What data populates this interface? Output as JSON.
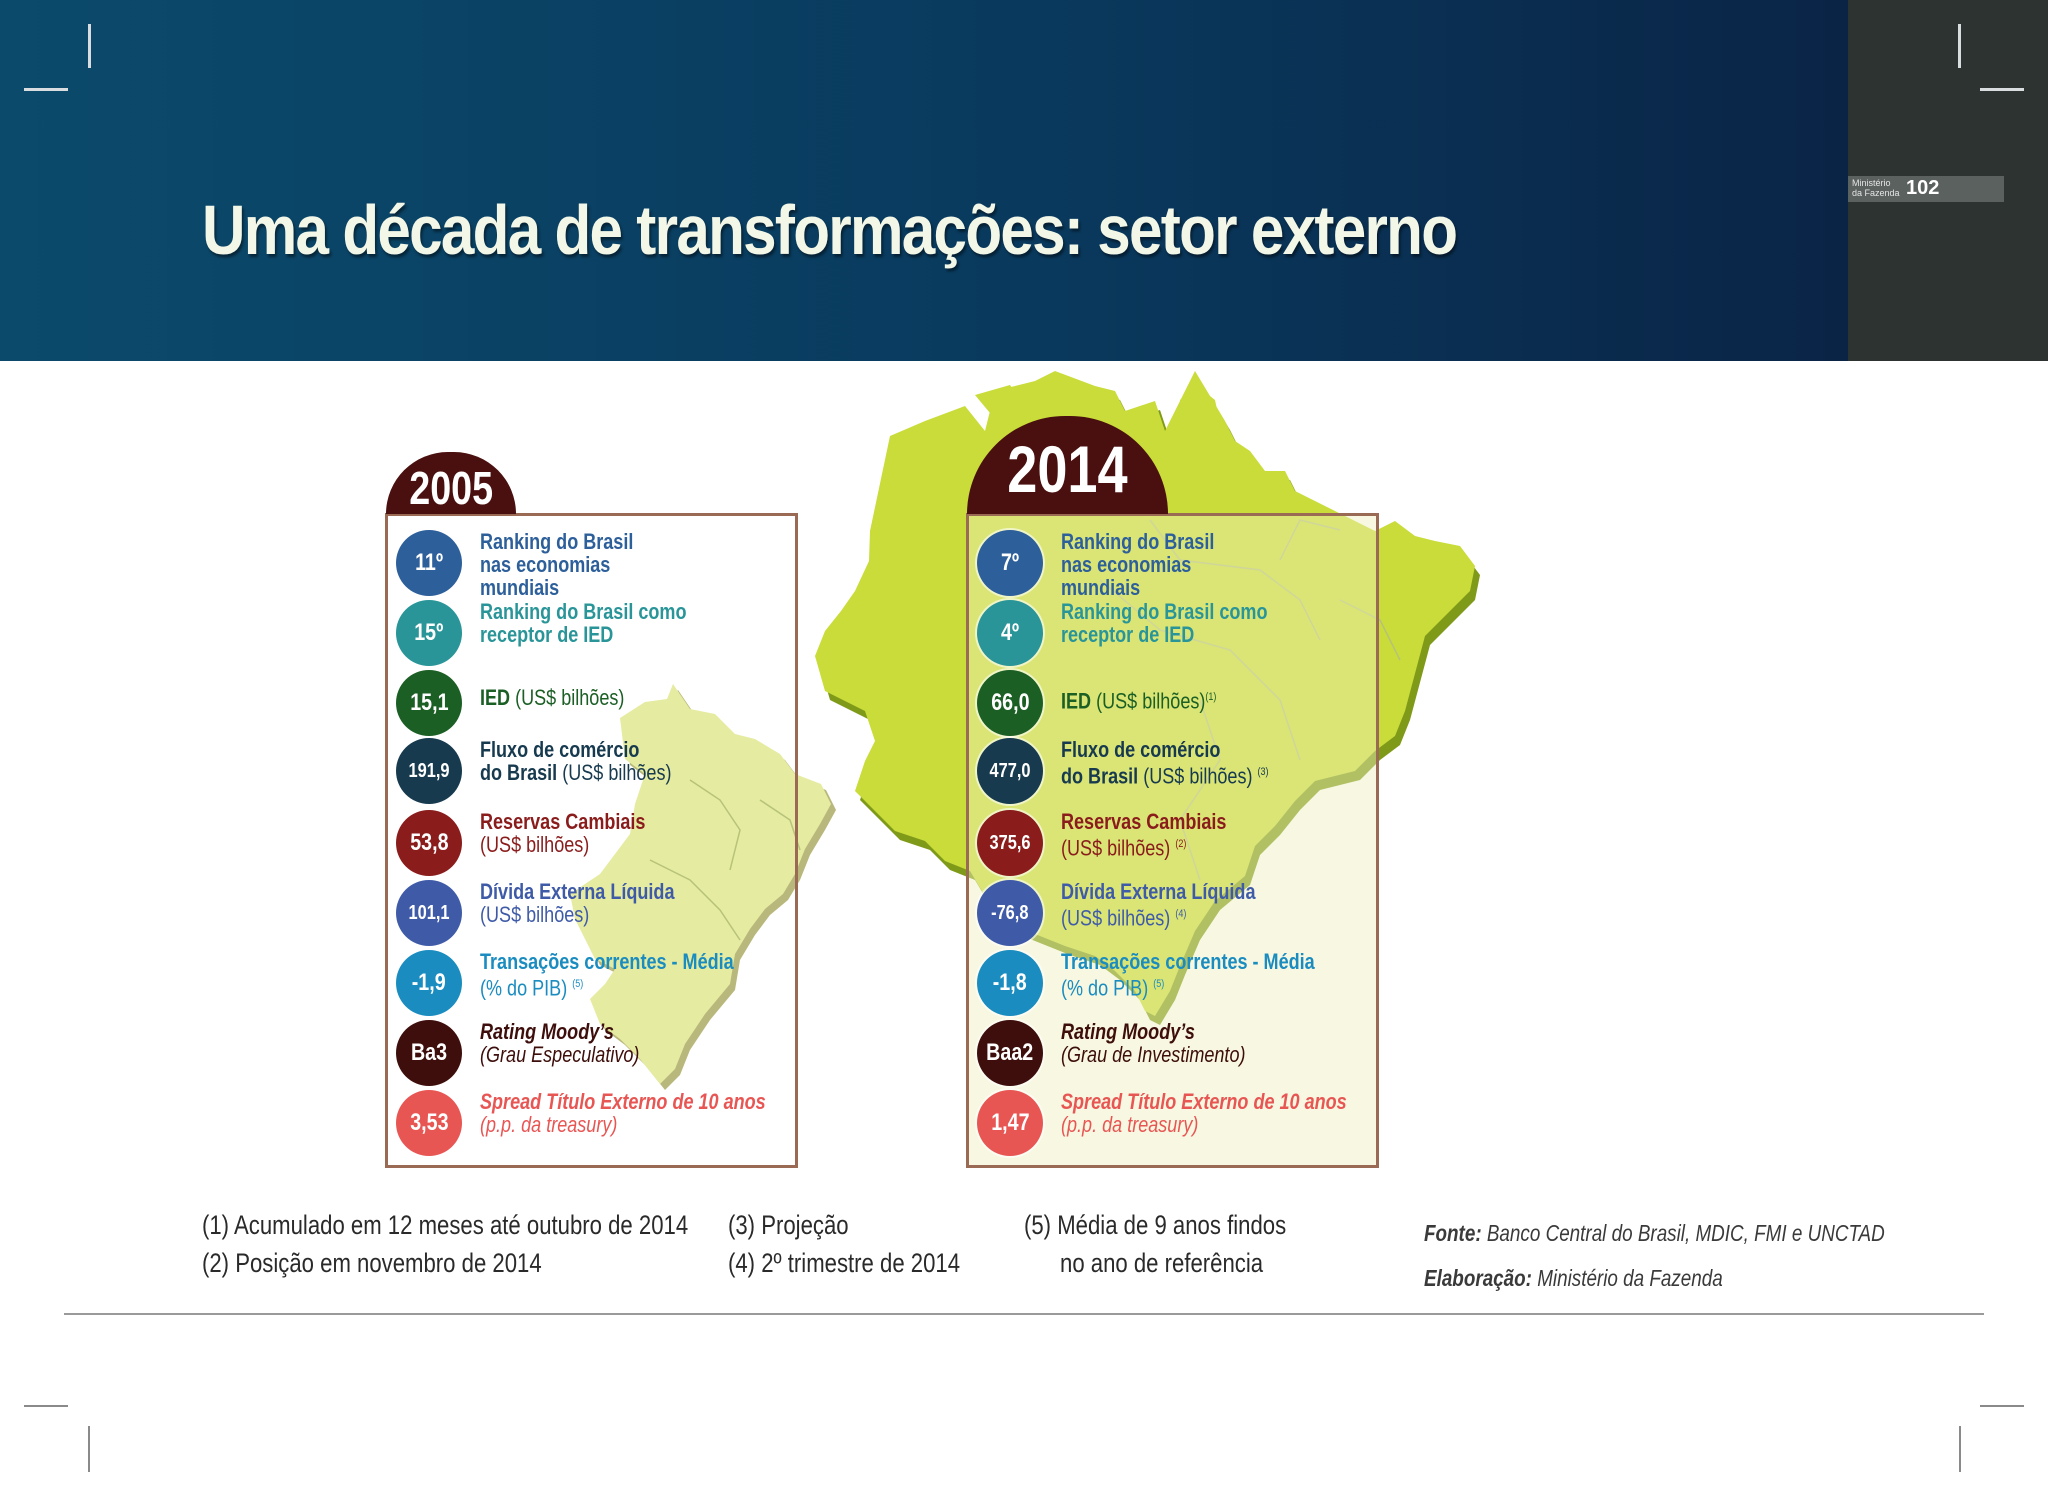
{
  "header": {
    "title": "Uma década de transformações: setor externo",
    "ministry_line1": "Ministério",
    "ministry_line2": "da Fazenda",
    "page_number": "102"
  },
  "colors": {
    "header_bg": "#0b4a6b",
    "map_green": "#c9dc3a",
    "map_pale": "#e5eba0",
    "year_tab": "#4a0f0f",
    "circle_blue": "#2d5f9a",
    "circle_teal": "#2a9598",
    "circle_green": "#1b5f25",
    "circle_navy": "#173a4f",
    "circle_maroon": "#8a1c1c",
    "circle_indigo": "#3f5ba8",
    "circle_cyan": "#1a8cc0",
    "circle_brown": "#3d0e0b",
    "circle_red": "#e85654"
  },
  "panels": [
    {
      "year": "2005",
      "rows": [
        {
          "value": "11º",
          "l1": "Ranking do Brasil",
          "l1b": "",
          "l2": "nas economias",
          "l3": "mundiais",
          "sup": ""
        },
        {
          "value": "15º",
          "l1": "Ranking do Brasil como",
          "l1b": "",
          "l2": "receptor de IED",
          "l3": "",
          "sup": ""
        },
        {
          "value": "15,1",
          "l1": "IED",
          "l1b": " (US$ bilhões)",
          "l2": "",
          "l3": "",
          "sup": ""
        },
        {
          "value": "191,9",
          "l1": "Fluxo de comércio",
          "l1b": "",
          "l2": "do Brasil",
          "l3": " (US$ bilhões)",
          "sup": ""
        },
        {
          "value": "53,8",
          "l1": "Reservas Cambiais",
          "l1b": "",
          "l2": "(US$ bilhões)",
          "l3": "",
          "sup": ""
        },
        {
          "value": "101,1",
          "l1": "Dívida Externa Líquida",
          "l1b": "",
          "l2": "(US$ bilhões)",
          "l3": "",
          "sup": ""
        },
        {
          "value": "-1,9",
          "l1": "Transações correntes - Média",
          "l1b": "",
          "l2": "(% do PIB)",
          "l3": "",
          "sup": "(5)"
        },
        {
          "value": "Ba3",
          "l1": "Rating Moody’s",
          "l1b": "",
          "l2": "(Grau Especulativo)",
          "l3": "",
          "sup": ""
        },
        {
          "value": "3,53",
          "l1": "Spread Título Externo de 10 anos",
          "l1b": "",
          "l2": "(p.p. da treasury)",
          "l3": "",
          "sup": ""
        }
      ]
    },
    {
      "year": "2014",
      "rows": [
        {
          "value": "7º",
          "l1": "Ranking do Brasil",
          "l1b": "",
          "l2": "nas economias",
          "l3": "mundiais",
          "sup": ""
        },
        {
          "value": "4º",
          "l1": "Ranking do Brasil como",
          "l1b": "",
          "l2": "receptor de IED",
          "l3": "",
          "sup": ""
        },
        {
          "value": "66,0",
          "l1": "IED",
          "l1b": " (US$ bilhões)",
          "l2": "",
          "l3": "",
          "sup": "(1)"
        },
        {
          "value": "477,0",
          "l1": "Fluxo de comércio",
          "l1b": "",
          "l2": "do Brasil",
          "l3": " (US$ bilhões)",
          "sup": "(3)"
        },
        {
          "value": "375,6",
          "l1": "Reservas Cambiais",
          "l1b": "",
          "l2": "(US$ bilhões)",
          "l3": "",
          "sup": "(2)"
        },
        {
          "value": "-76,8",
          "l1": "Dívida Externa Líquida",
          "l1b": "",
          "l2": "(US$ bilhões)",
          "l3": "",
          "sup": "(4)"
        },
        {
          "value": "-1,8",
          "l1": "Transações correntes - Média",
          "l1b": "",
          "l2": "(% do PIB)",
          "l3": "",
          "sup": "(5)"
        },
        {
          "value": "Baa2",
          "l1": "Rating Moody’s",
          "l1b": "",
          "l2": "(Grau de Investimento)",
          "l3": "",
          "sup": ""
        },
        {
          "value": "1,47",
          "l1": "Spread Título Externo de 10 anos",
          "l1b": "",
          "l2": "(p.p. da treasury)",
          "l3": "",
          "sup": ""
        }
      ]
    }
  ],
  "footnotes": {
    "n1": "(1) Acumulado em 12 meses até outubro de 2014",
    "n2": "(2) Posição em novembro de 2014",
    "n3": "(3) Projeção",
    "n4": "(4) 2º trimestre de 2014",
    "n5a": "(5) Média de 9 anos findos",
    "n5b": "no ano de referência"
  },
  "source": {
    "fonte_label": "Fonte:",
    "fonte_text": " Banco Central do Brasil, MDIC, FMI e UNCTAD",
    "elab_label": "Elaboração:",
    "elab_text": " Ministério da Fazenda"
  }
}
